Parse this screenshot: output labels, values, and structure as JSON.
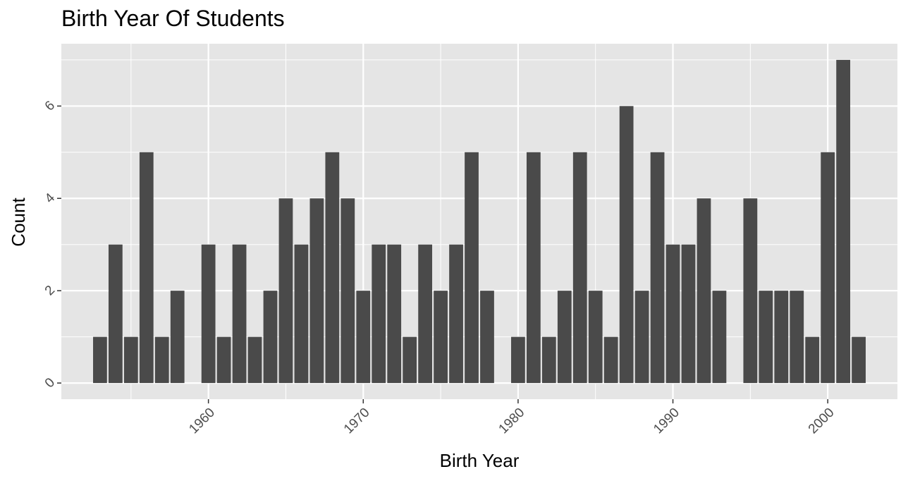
{
  "chart_data": {
    "type": "bar",
    "title": "Birth Year Of Students",
    "xlabel": "Birth Year",
    "ylabel": "Count",
    "x": [
      1953,
      1954,
      1955,
      1956,
      1957,
      1958,
      1960,
      1961,
      1962,
      1963,
      1964,
      1965,
      1966,
      1967,
      1968,
      1969,
      1970,
      1971,
      1972,
      1973,
      1974,
      1975,
      1976,
      1977,
      1978,
      1980,
      1981,
      1982,
      1983,
      1984,
      1985,
      1986,
      1987,
      1988,
      1989,
      1990,
      1991,
      1992,
      1993,
      1995,
      1996,
      1997,
      1998,
      1999,
      2000,
      2001,
      2002
    ],
    "values": [
      1,
      3,
      1,
      5,
      1,
      2,
      3,
      1,
      3,
      1,
      2,
      4,
      3,
      4,
      5,
      4,
      2,
      3,
      3,
      1,
      3,
      2,
      3,
      5,
      2,
      1,
      5,
      1,
      2,
      5,
      2,
      1,
      6,
      2,
      5,
      3,
      3,
      4,
      2,
      4,
      2,
      2,
      2,
      1,
      5,
      7,
      1
    ],
    "xlim": [
      1950.5,
      2004.5
    ],
    "ylim": [
      -0.35,
      7.35
    ],
    "x_ticks": [
      1960,
      1970,
      1980,
      1990,
      2000
    ],
    "y_ticks": [
      0,
      2,
      4,
      6
    ],
    "grid": true,
    "colors": {
      "panel": "#e5e5e5",
      "grid": "#ffffff",
      "bar": "#4a4a4a",
      "tick_text": "#4d4d4d"
    }
  }
}
